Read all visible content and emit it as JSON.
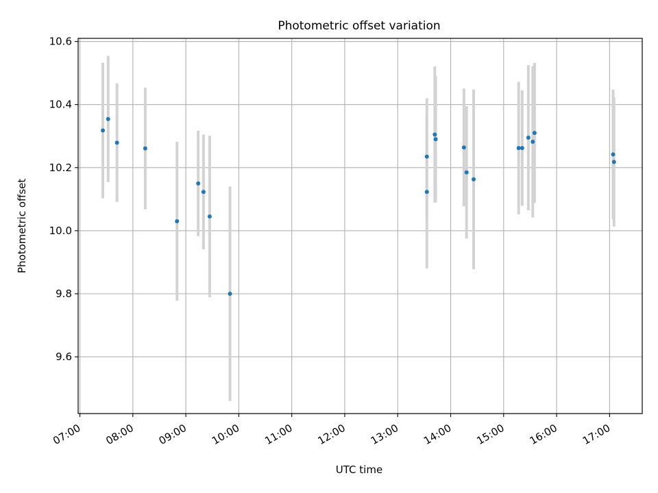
{
  "chart_data": {
    "type": "scatter",
    "title": "Photometric offset variation",
    "xlabel": "UTC time",
    "ylabel": "Photometric offset",
    "x_tick_labels": [
      "07:00",
      "08:00",
      "09:00",
      "10:00",
      "11:00",
      "12:00",
      "13:00",
      "14:00",
      "15:00",
      "16:00",
      "17:00"
    ],
    "y_tick_labels": [
      "9.6",
      "9.8",
      "10.0",
      "10.2",
      "10.4",
      "10.6"
    ],
    "xlim": [
      "06:58",
      "17:37"
    ],
    "ylim": [
      9.42,
      10.61
    ],
    "grid": true,
    "point_color": "#1f77b4",
    "errorbar_color": "#d3d3d3",
    "points": [
      {
        "x": "07:26",
        "y": 10.318,
        "yerr": 0.215
      },
      {
        "x": "07:32",
        "y": 10.354,
        "yerr": 0.2
      },
      {
        "x": "07:42",
        "y": 10.279,
        "yerr": 0.188
      },
      {
        "x": "08:14",
        "y": 10.261,
        "yerr": 0.193
      },
      {
        "x": "08:50",
        "y": 10.03,
        "yerr": 0.252
      },
      {
        "x": "09:14",
        "y": 10.15,
        "yerr": 0.167
      },
      {
        "x": "09:20",
        "y": 10.123,
        "yerr": 0.182
      },
      {
        "x": "09:27",
        "y": 10.045,
        "yerr": 0.256
      },
      {
        "x": "09:50",
        "y": 9.8,
        "yerr": 0.34
      },
      {
        "x": "13:33",
        "y": 10.235,
        "yerr": 0.185
      },
      {
        "x": "13:33",
        "y": 10.123,
        "yerr": 0.243
      },
      {
        "x": "13:42",
        "y": 10.305,
        "yerr": 0.216
      },
      {
        "x": "13:43",
        "y": 10.29,
        "yerr": 0.2
      },
      {
        "x": "14:15",
        "y": 10.264,
        "yerr": 0.187
      },
      {
        "x": "14:18",
        "y": 10.185,
        "yerr": 0.21
      },
      {
        "x": "14:26",
        "y": 10.163,
        "yerr": 0.285
      },
      {
        "x": "15:17",
        "y": 10.262,
        "yerr": 0.21
      },
      {
        "x": "15:21",
        "y": 10.262,
        "yerr": 0.183
      },
      {
        "x": "15:28",
        "y": 10.295,
        "yerr": 0.23
      },
      {
        "x": "15:33",
        "y": 10.282,
        "yerr": 0.24
      },
      {
        "x": "15:35",
        "y": 10.31,
        "yerr": 0.222
      },
      {
        "x": "17:04",
        "y": 10.242,
        "yerr": 0.205
      },
      {
        "x": "17:05",
        "y": 10.218,
        "yerr": 0.205
      }
    ]
  }
}
